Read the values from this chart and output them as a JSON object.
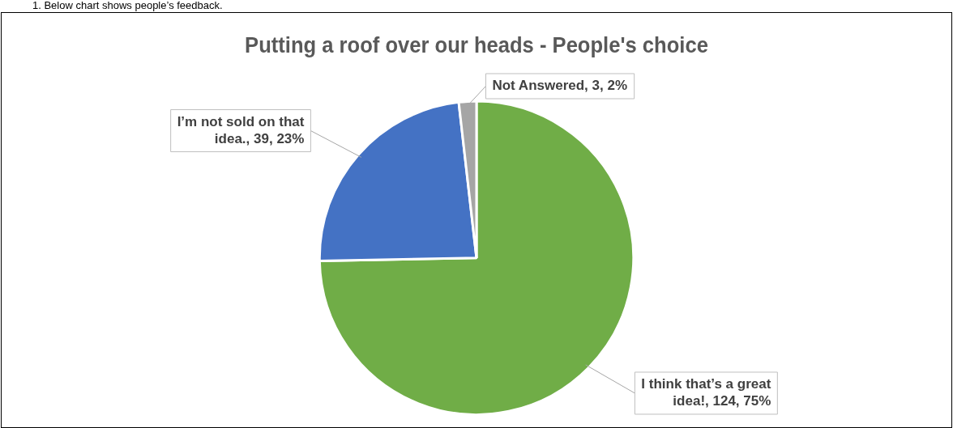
{
  "chart_data": {
    "type": "pie",
    "title": "Putting a roof over our heads - People's choice",
    "categories": [
      "I think that’s a great idea!",
      "I’m not sold on that idea.",
      "Not Answered"
    ],
    "values": [
      124,
      39,
      3
    ],
    "colors": [
      "#70ad47",
      "#4472c4",
      "#a5a5a5"
    ],
    "value_labels": [
      "124, 75%",
      "39, 23%",
      "3, 2%"
    ],
    "legend": false,
    "annotations": [
      "1.   Below chart shows people’s feedback."
    ]
  }
}
